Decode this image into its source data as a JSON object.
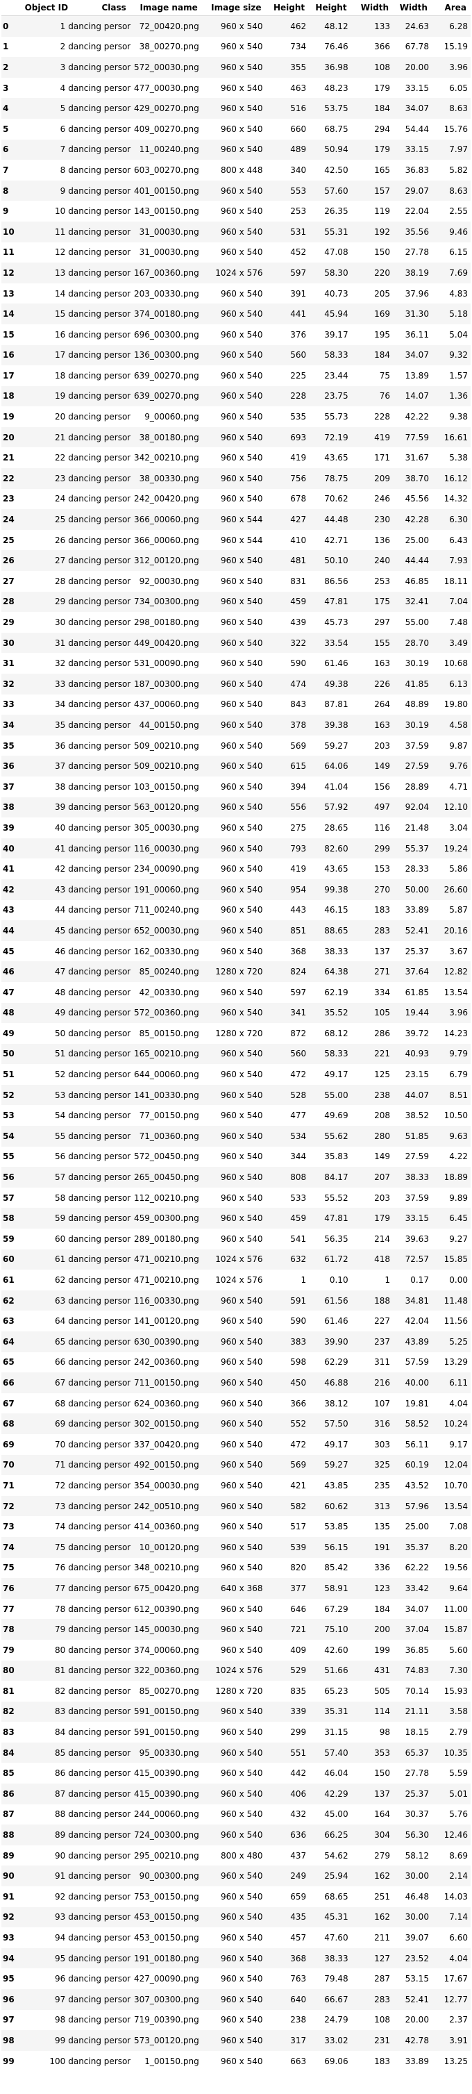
{
  "columns": [
    "",
    "Object ID",
    "Class",
    "Image name",
    "Image size",
    "Height",
    "Height",
    "Width",
    "Width",
    "Area"
  ],
  "rows": [
    [
      "0",
      "1",
      "dancing person",
      "72_00420.png",
      "960 x 540",
      "462",
      "48.12",
      "133",
      "24.63",
      "6.28"
    ],
    [
      "1",
      "2",
      "dancing person",
      "38_00270.png",
      "960 x 540",
      "734",
      "76.46",
      "366",
      "67.78",
      "15.19"
    ],
    [
      "2",
      "3",
      "dancing person",
      "572_00030.png",
      "960 x 540",
      "355",
      "36.98",
      "108",
      "20.00",
      "3.96"
    ],
    [
      "3",
      "4",
      "dancing person",
      "477_00030.png",
      "960 x 540",
      "463",
      "48.23",
      "179",
      "33.15",
      "6.05"
    ],
    [
      "4",
      "5",
      "dancing person",
      "429_00270.png",
      "960 x 540",
      "516",
      "53.75",
      "184",
      "34.07",
      "8.63"
    ],
    [
      "5",
      "6",
      "dancing person",
      "409_00270.png",
      "960 x 540",
      "660",
      "68.75",
      "294",
      "54.44",
      "15.76"
    ],
    [
      "6",
      "7",
      "dancing person",
      "11_00240.png",
      "960 x 540",
      "489",
      "50.94",
      "179",
      "33.15",
      "7.97"
    ],
    [
      "7",
      "8",
      "dancing person",
      "603_00270.png",
      "800 x 448",
      "340",
      "42.50",
      "165",
      "36.83",
      "5.82"
    ],
    [
      "8",
      "9",
      "dancing person",
      "401_00150.png",
      "960 x 540",
      "553",
      "57.60",
      "157",
      "29.07",
      "8.63"
    ],
    [
      "9",
      "10",
      "dancing person",
      "143_00150.png",
      "960 x 540",
      "253",
      "26.35",
      "119",
      "22.04",
      "2.55"
    ],
    [
      "10",
      "11",
      "dancing person",
      "31_00030.png",
      "960 x 540",
      "531",
      "55.31",
      "192",
      "35.56",
      "9.46"
    ],
    [
      "11",
      "12",
      "dancing person",
      "31_00030.png",
      "960 x 540",
      "452",
      "47.08",
      "150",
      "27.78",
      "6.15"
    ],
    [
      "12",
      "13",
      "dancing person",
      "167_00360.png",
      "1024 x 576",
      "597",
      "58.30",
      "220",
      "38.19",
      "7.69"
    ],
    [
      "13",
      "14",
      "dancing person",
      "203_00330.png",
      "960 x 540",
      "391",
      "40.73",
      "205",
      "37.96",
      "4.83"
    ],
    [
      "14",
      "15",
      "dancing person",
      "374_00180.png",
      "960 x 540",
      "441",
      "45.94",
      "169",
      "31.30",
      "5.18"
    ],
    [
      "15",
      "16",
      "dancing person",
      "696_00300.png",
      "960 x 540",
      "376",
      "39.17",
      "195",
      "36.11",
      "5.04"
    ],
    [
      "16",
      "17",
      "dancing person",
      "136_00300.png",
      "960 x 540",
      "560",
      "58.33",
      "184",
      "34.07",
      "9.32"
    ],
    [
      "17",
      "18",
      "dancing person",
      "639_00270.png",
      "960 x 540",
      "225",
      "23.44",
      "75",
      "13.89",
      "1.57"
    ],
    [
      "18",
      "19",
      "dancing person",
      "639_00270.png",
      "960 x 540",
      "228",
      "23.75",
      "76",
      "14.07",
      "1.36"
    ],
    [
      "19",
      "20",
      "dancing person",
      "9_00060.png",
      "960 x 540",
      "535",
      "55.73",
      "228",
      "42.22",
      "9.38"
    ],
    [
      "20",
      "21",
      "dancing person",
      "38_00180.png",
      "960 x 540",
      "693",
      "72.19",
      "419",
      "77.59",
      "16.61"
    ],
    [
      "21",
      "22",
      "dancing person",
      "342_00210.png",
      "960 x 540",
      "419",
      "43.65",
      "171",
      "31.67",
      "5.38"
    ],
    [
      "22",
      "23",
      "dancing person",
      "38_00330.png",
      "960 x 540",
      "756",
      "78.75",
      "209",
      "38.70",
      "16.12"
    ],
    [
      "23",
      "24",
      "dancing person",
      "242_00420.png",
      "960 x 540",
      "678",
      "70.62",
      "246",
      "45.56",
      "14.32"
    ],
    [
      "24",
      "25",
      "dancing person",
      "366_00060.png",
      "960 x 544",
      "427",
      "44.48",
      "230",
      "42.28",
      "6.30"
    ],
    [
      "25",
      "26",
      "dancing person",
      "366_00060.png",
      "960 x 544",
      "410",
      "42.71",
      "136",
      "25.00",
      "6.43"
    ],
    [
      "26",
      "27",
      "dancing person",
      "312_00120.png",
      "960 x 540",
      "481",
      "50.10",
      "240",
      "44.44",
      "7.93"
    ],
    [
      "27",
      "28",
      "dancing person",
      "92_00030.png",
      "960 x 540",
      "831",
      "86.56",
      "253",
      "46.85",
      "18.11"
    ],
    [
      "28",
      "29",
      "dancing person",
      "734_00300.png",
      "960 x 540",
      "459",
      "47.81",
      "175",
      "32.41",
      "7.04"
    ],
    [
      "29",
      "30",
      "dancing person",
      "298_00180.png",
      "960 x 540",
      "439",
      "45.73",
      "297",
      "55.00",
      "7.48"
    ],
    [
      "30",
      "31",
      "dancing person",
      "449_00420.png",
      "960 x 540",
      "322",
      "33.54",
      "155",
      "28.70",
      "3.49"
    ],
    [
      "31",
      "32",
      "dancing person",
      "531_00090.png",
      "960 x 540",
      "590",
      "61.46",
      "163",
      "30.19",
      "10.68"
    ],
    [
      "32",
      "33",
      "dancing person",
      "187_00300.png",
      "960 x 540",
      "474",
      "49.38",
      "226",
      "41.85",
      "6.13"
    ],
    [
      "33",
      "34",
      "dancing person",
      "437_00060.png",
      "960 x 540",
      "843",
      "87.81",
      "264",
      "48.89",
      "19.80"
    ],
    [
      "34",
      "35",
      "dancing person",
      "44_00150.png",
      "960 x 540",
      "378",
      "39.38",
      "163",
      "30.19",
      "4.58"
    ],
    [
      "35",
      "36",
      "dancing person",
      "509_00210.png",
      "960 x 540",
      "569",
      "59.27",
      "203",
      "37.59",
      "9.87"
    ],
    [
      "36",
      "37",
      "dancing person",
      "509_00210.png",
      "960 x 540",
      "615",
      "64.06",
      "149",
      "27.59",
      "9.76"
    ],
    [
      "37",
      "38",
      "dancing person",
      "103_00150.png",
      "960 x 540",
      "394",
      "41.04",
      "156",
      "28.89",
      "4.71"
    ],
    [
      "38",
      "39",
      "dancing person",
      "563_00120.png",
      "960 x 540",
      "556",
      "57.92",
      "497",
      "92.04",
      "12.10"
    ],
    [
      "39",
      "40",
      "dancing person",
      "305_00030.png",
      "960 x 540",
      "275",
      "28.65",
      "116",
      "21.48",
      "3.04"
    ],
    [
      "40",
      "41",
      "dancing person",
      "116_00030.png",
      "960 x 540",
      "793",
      "82.60",
      "299",
      "55.37",
      "19.24"
    ],
    [
      "41",
      "42",
      "dancing person",
      "234_00090.png",
      "960 x 540",
      "419",
      "43.65",
      "153",
      "28.33",
      "5.86"
    ],
    [
      "42",
      "43",
      "dancing person",
      "191_00060.png",
      "960 x 540",
      "954",
      "99.38",
      "270",
      "50.00",
      "26.60"
    ],
    [
      "43",
      "44",
      "dancing person",
      "711_00240.png",
      "960 x 540",
      "443",
      "46.15",
      "183",
      "33.89",
      "5.87"
    ],
    [
      "44",
      "45",
      "dancing person",
      "652_00030.png",
      "960 x 540",
      "851",
      "88.65",
      "283",
      "52.41",
      "20.16"
    ],
    [
      "45",
      "46",
      "dancing person",
      "162_00330.png",
      "960 x 540",
      "368",
      "38.33",
      "137",
      "25.37",
      "3.67"
    ],
    [
      "46",
      "47",
      "dancing person",
      "85_00240.png",
      "1280 x 720",
      "824",
      "64.38",
      "271",
      "37.64",
      "12.82"
    ],
    [
      "47",
      "48",
      "dancing person",
      "42_00330.png",
      "960 x 540",
      "597",
      "62.19",
      "334",
      "61.85",
      "13.54"
    ],
    [
      "48",
      "49",
      "dancing person",
      "572_00360.png",
      "960 x 540",
      "341",
      "35.52",
      "105",
      "19.44",
      "3.96"
    ],
    [
      "49",
      "50",
      "dancing person",
      "85_00150.png",
      "1280 x 720",
      "872",
      "68.12",
      "286",
      "39.72",
      "14.23"
    ],
    [
      "50",
      "51",
      "dancing person",
      "165_00210.png",
      "960 x 540",
      "560",
      "58.33",
      "221",
      "40.93",
      "9.79"
    ],
    [
      "51",
      "52",
      "dancing person",
      "644_00060.png",
      "960 x 540",
      "472",
      "49.17",
      "125",
      "23.15",
      "6.79"
    ],
    [
      "52",
      "53",
      "dancing person",
      "141_00330.png",
      "960 x 540",
      "528",
      "55.00",
      "238",
      "44.07",
      "8.51"
    ],
    [
      "53",
      "54",
      "dancing person",
      "77_00150.png",
      "960 x 540",
      "477",
      "49.69",
      "208",
      "38.52",
      "10.50"
    ],
    [
      "54",
      "55",
      "dancing person",
      "71_00360.png",
      "960 x 540",
      "534",
      "55.62",
      "280",
      "51.85",
      "9.63"
    ],
    [
      "55",
      "56",
      "dancing person",
      "572_00450.png",
      "960 x 540",
      "344",
      "35.83",
      "149",
      "27.59",
      "4.22"
    ],
    [
      "56",
      "57",
      "dancing person",
      "265_00450.png",
      "960 x 540",
      "808",
      "84.17",
      "207",
      "38.33",
      "18.89"
    ],
    [
      "57",
      "58",
      "dancing person",
      "112_00210.png",
      "960 x 540",
      "533",
      "55.52",
      "203",
      "37.59",
      "9.89"
    ],
    [
      "58",
      "59",
      "dancing person",
      "459_00300.png",
      "960 x 540",
      "459",
      "47.81",
      "179",
      "33.15",
      "6.45"
    ],
    [
      "59",
      "60",
      "dancing person",
      "289_00180.png",
      "960 x 540",
      "541",
      "56.35",
      "214",
      "39.63",
      "9.27"
    ],
    [
      "60",
      "61",
      "dancing person",
      "471_00210.png",
      "1024 x 576",
      "632",
      "61.72",
      "418",
      "72.57",
      "15.85"
    ],
    [
      "61",
      "62",
      "dancing person",
      "471_00210.png",
      "1024 x 576",
      "1",
      "0.10",
      "1",
      "0.17",
      "0.00"
    ],
    [
      "62",
      "63",
      "dancing person",
      "116_00330.png",
      "960 x 540",
      "591",
      "61.56",
      "188",
      "34.81",
      "11.48"
    ],
    [
      "63",
      "64",
      "dancing person",
      "141_00120.png",
      "960 x 540",
      "590",
      "61.46",
      "227",
      "42.04",
      "11.56"
    ],
    [
      "64",
      "65",
      "dancing person",
      "630_00390.png",
      "960 x 540",
      "383",
      "39.90",
      "237",
      "43.89",
      "5.25"
    ],
    [
      "65",
      "66",
      "dancing person",
      "242_00360.png",
      "960 x 540",
      "598",
      "62.29",
      "311",
      "57.59",
      "13.29"
    ],
    [
      "66",
      "67",
      "dancing person",
      "711_00150.png",
      "960 x 540",
      "450",
      "46.88",
      "216",
      "40.00",
      "6.11"
    ],
    [
      "67",
      "68",
      "dancing person",
      "624_00360.png",
      "960 x 540",
      "366",
      "38.12",
      "107",
      "19.81",
      "4.04"
    ],
    [
      "68",
      "69",
      "dancing person",
      "302_00150.png",
      "960 x 540",
      "552",
      "57.50",
      "316",
      "58.52",
      "10.24"
    ],
    [
      "69",
      "70",
      "dancing person",
      "337_00420.png",
      "960 x 540",
      "472",
      "49.17",
      "303",
      "56.11",
      "9.17"
    ],
    [
      "70",
      "71",
      "dancing person",
      "492_00150.png",
      "960 x 540",
      "569",
      "59.27",
      "325",
      "60.19",
      "12.04"
    ],
    [
      "71",
      "72",
      "dancing person",
      "354_00030.png",
      "960 x 540",
      "421",
      "43.85",
      "235",
      "43.52",
      "10.70"
    ],
    [
      "72",
      "73",
      "dancing person",
      "242_00510.png",
      "960 x 540",
      "582",
      "60.62",
      "313",
      "57.96",
      "13.54"
    ],
    [
      "73",
      "74",
      "dancing person",
      "414_00360.png",
      "960 x 540",
      "517",
      "53.85",
      "135",
      "25.00",
      "7.08"
    ],
    [
      "74",
      "75",
      "dancing person",
      "10_00120.png",
      "960 x 540",
      "539",
      "56.15",
      "191",
      "35.37",
      "8.20"
    ],
    [
      "75",
      "76",
      "dancing person",
      "348_00210.png",
      "960 x 540",
      "820",
      "85.42",
      "336",
      "62.22",
      "19.56"
    ],
    [
      "76",
      "77",
      "dancing person",
      "675_00420.png",
      "640 x 368",
      "377",
      "58.91",
      "123",
      "33.42",
      "9.64"
    ],
    [
      "77",
      "78",
      "dancing person",
      "612_00390.png",
      "960 x 540",
      "646",
      "67.29",
      "184",
      "34.07",
      "11.00"
    ],
    [
      "78",
      "79",
      "dancing person",
      "145_00030.png",
      "960 x 540",
      "721",
      "75.10",
      "200",
      "37.04",
      "15.87"
    ],
    [
      "79",
      "80",
      "dancing person",
      "374_00060.png",
      "960 x 540",
      "409",
      "42.60",
      "199",
      "36.85",
      "5.60"
    ],
    [
      "80",
      "81",
      "dancing person",
      "322_00360.png",
      "1024 x 576",
      "529",
      "51.66",
      "431",
      "74.83",
      "7.30"
    ],
    [
      "81",
      "82",
      "dancing person",
      "85_00270.png",
      "1280 x 720",
      "835",
      "65.23",
      "505",
      "70.14",
      "15.93"
    ],
    [
      "82",
      "83",
      "dancing person",
      "591_00150.png",
      "960 x 540",
      "339",
      "35.31",
      "114",
      "21.11",
      "3.58"
    ],
    [
      "83",
      "84",
      "dancing person",
      "591_00150.png",
      "960 x 540",
      "299",
      "31.15",
      "98",
      "18.15",
      "2.79"
    ],
    [
      "84",
      "85",
      "dancing person",
      "95_00330.png",
      "960 x 540",
      "551",
      "57.40",
      "353",
      "65.37",
      "10.35"
    ],
    [
      "85",
      "86",
      "dancing person",
      "415_00390.png",
      "960 x 540",
      "442",
      "46.04",
      "150",
      "27.78",
      "5.59"
    ],
    [
      "86",
      "87",
      "dancing person",
      "415_00390.png",
      "960 x 540",
      "406",
      "42.29",
      "137",
      "25.37",
      "5.01"
    ],
    [
      "87",
      "88",
      "dancing person",
      "244_00060.png",
      "960 x 540",
      "432",
      "45.00",
      "164",
      "30.37",
      "5.76"
    ],
    [
      "88",
      "89",
      "dancing person",
      "724_00300.png",
      "960 x 540",
      "636",
      "66.25",
      "304",
      "56.30",
      "12.46"
    ],
    [
      "89",
      "90",
      "dancing person",
      "295_00210.png",
      "800 x 480",
      "437",
      "54.62",
      "279",
      "58.12",
      "8.69"
    ],
    [
      "90",
      "91",
      "dancing person",
      "90_00300.png",
      "960 x 540",
      "249",
      "25.94",
      "162",
      "30.00",
      "2.14"
    ],
    [
      "91",
      "92",
      "dancing person",
      "753_00150.png",
      "960 x 540",
      "659",
      "68.65",
      "251",
      "46.48",
      "14.03"
    ],
    [
      "92",
      "93",
      "dancing person",
      "453_00150.png",
      "960 x 540",
      "435",
      "45.31",
      "162",
      "30.00",
      "7.14"
    ],
    [
      "93",
      "94",
      "dancing person",
      "453_00150.png",
      "960 x 540",
      "457",
      "47.60",
      "211",
      "39.07",
      "6.60"
    ],
    [
      "94",
      "95",
      "dancing person",
      "191_00180.png",
      "960 x 540",
      "368",
      "38.33",
      "127",
      "23.52",
      "4.04"
    ],
    [
      "95",
      "96",
      "dancing person",
      "427_00090.png",
      "960 x 540",
      "763",
      "79.48",
      "287",
      "53.15",
      "17.67"
    ],
    [
      "96",
      "97",
      "dancing person",
      "307_00300.png",
      "960 x 540",
      "640",
      "66.67",
      "283",
      "52.41",
      "12.77"
    ],
    [
      "97",
      "98",
      "dancing person",
      "719_00390.png",
      "960 x 540",
      "238",
      "24.79",
      "108",
      "20.00",
      "2.37"
    ],
    [
      "98",
      "99",
      "dancing person",
      "573_00120.png",
      "960 x 540",
      "317",
      "33.02",
      "231",
      "42.78",
      "3.91"
    ],
    [
      "99",
      "100",
      "dancing person",
      "1_00150.png",
      "960 x 540",
      "663",
      "69.06",
      "183",
      "33.89",
      "13.25"
    ]
  ]
}
